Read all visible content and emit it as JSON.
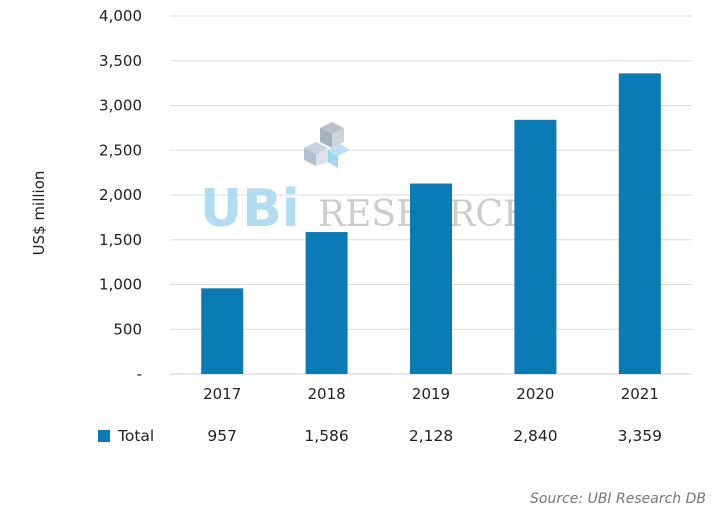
{
  "chart_data": {
    "type": "bar",
    "categories": [
      "2017",
      "2018",
      "2019",
      "2020",
      "2021"
    ],
    "series": [
      {
        "name": "Total",
        "values": [
          957,
          1586,
          2128,
          2840,
          3359
        ]
      }
    ],
    "value_labels": [
      "957",
      "1,586",
      "2,128",
      "2,840",
      "3,359"
    ],
    "ylabel": "US$ million",
    "ylim": [
      0,
      4000
    ],
    "yticks": [
      0,
      500,
      1000,
      1500,
      2000,
      2500,
      3000,
      3500,
      4000
    ],
    "ytick_labels": [
      "-",
      "500",
      "1,000",
      "1,500",
      "2,000",
      "2,500",
      "3,000",
      "3,500",
      "4,000"
    ],
    "grid": true,
    "data_table": true,
    "bar_color": "#0b7bb5",
    "source": "Source: UBI Research DB"
  },
  "watermark": {
    "logo_letters": "UBi",
    "text": "RESEARCH"
  }
}
